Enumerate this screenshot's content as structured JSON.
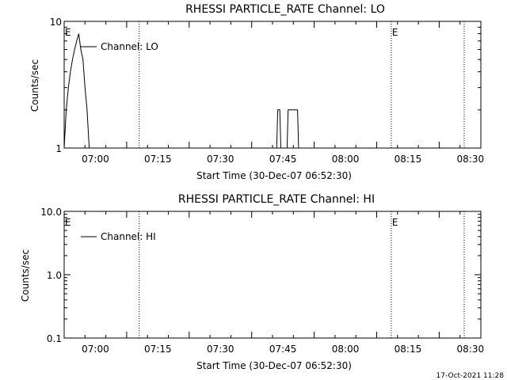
{
  "chart_data": [
    {
      "type": "line",
      "title": "RHESSI PARTICLE_RATE Channel: LO",
      "xlabel": "Start Time (30-Dec-07 06:52:30)",
      "ylabel": "Counts/sec",
      "yscale": "log",
      "ylim": [
        1,
        10
      ],
      "ytick_labels": [
        {
          "value": 1,
          "label": "1"
        },
        {
          "value": 10,
          "label": "10"
        }
      ],
      "xlim": [
        "06:52:30",
        "08:32:30"
      ],
      "xtick_labels": [
        "07:00",
        "07:15",
        "07:30",
        "07:45",
        "08:00",
        "08:15",
        "08:30"
      ],
      "xtick_minutes": [
        0,
        15,
        30,
        45,
        60,
        75,
        90
      ],
      "markers": [
        {
          "label": "E",
          "x": "06:52:30"
        },
        {
          "label": "E",
          "x": "08:11:00"
        }
      ],
      "dotted_lines": [
        "07:10:30",
        "08:11:00",
        "08:28:30"
      ],
      "legend": {
        "entry": "Channel: LO",
        "position": "top-left"
      },
      "series": [
        {
          "name": "Channel: LO",
          "x": [
            "06:52:30",
            "06:53:00",
            "06:53:30",
            "06:54:00",
            "06:54:30",
            "06:55:00",
            "06:55:30",
            "06:56:00",
            "06:56:30",
            "06:57:00",
            "06:57:30",
            "06:58:00",
            "06:58:30",
            "07:43:30",
            "07:43:45",
            "07:44:15",
            "07:44:30",
            "07:46:00",
            "07:46:15",
            "07:46:30",
            "07:48:30",
            "07:48:45",
            "07:49:00"
          ],
          "values": [
            1,
            2,
            3,
            4,
            5,
            6,
            7,
            8,
            6,
            5,
            3,
            2,
            1,
            1,
            2,
            2,
            1,
            1,
            2,
            2,
            2,
            1,
            1
          ]
        }
      ]
    },
    {
      "type": "line",
      "title": "RHESSI PARTICLE_RATE Channel: HI",
      "xlabel": "Start Time (30-Dec-07 06:52:30)",
      "ylabel": "Counts/sec",
      "yscale": "log",
      "ylim": [
        0.1,
        10
      ],
      "ytick_labels": [
        {
          "value": 0.1,
          "label": "0.1"
        },
        {
          "value": 1,
          "label": "1.0"
        },
        {
          "value": 10,
          "label": "10.0"
        }
      ],
      "xlim": [
        "06:52:30",
        "08:32:30"
      ],
      "xtick_labels": [
        "07:00",
        "07:15",
        "07:30",
        "07:45",
        "08:00",
        "08:15",
        "08:30"
      ],
      "xtick_minutes": [
        0,
        15,
        30,
        45,
        60,
        75,
        90
      ],
      "markers": [
        {
          "label": "E",
          "x": "06:52:30"
        },
        {
          "label": "E",
          "x": "08:11:00"
        }
      ],
      "dotted_lines": [
        "07:10:30",
        "08:11:00",
        "08:28:30"
      ],
      "legend": {
        "entry": "Channel: HI",
        "position": "top-left"
      },
      "series": [
        {
          "name": "Channel: HI",
          "x": [],
          "values": []
        }
      ]
    }
  ],
  "footer_timestamp": "17-Oct-2021 11:28"
}
